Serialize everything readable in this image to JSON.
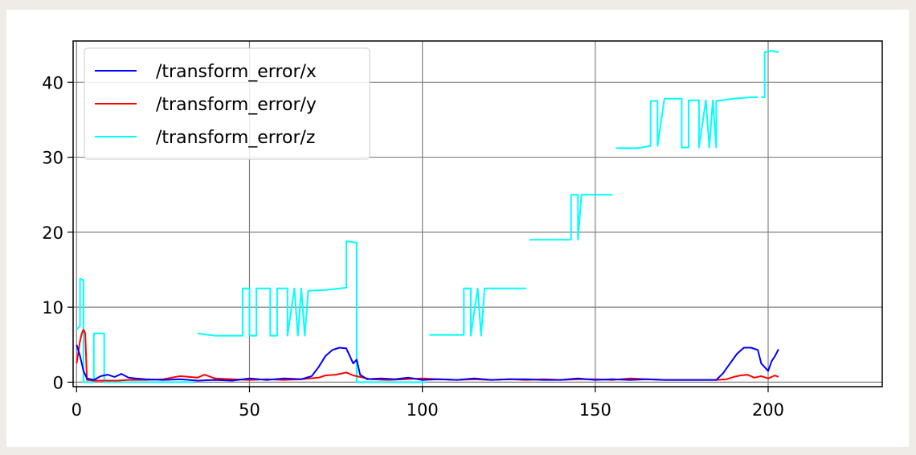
{
  "chart_data": {
    "type": "line",
    "xlim": [
      -1,
      233
    ],
    "ylim": [
      -0.6,
      45.5
    ],
    "x_ticks": [
      0,
      50,
      100,
      150,
      200
    ],
    "y_ticks": [
      0,
      10,
      20,
      30,
      40
    ],
    "grid": true,
    "legend_position": "top-left",
    "series": [
      {
        "name": "/transform_error/x",
        "color": "#0000ff",
        "points": [
          [
            0,
            5.0
          ],
          [
            1,
            3.5
          ],
          [
            2,
            1.5
          ],
          [
            3,
            0.5
          ],
          [
            5,
            0.3
          ],
          [
            7,
            0.8
          ],
          [
            9,
            1.0
          ],
          [
            11,
            0.7
          ],
          [
            13,
            1.1
          ],
          [
            15,
            0.6
          ],
          [
            17,
            0.5
          ],
          [
            20,
            0.4
          ],
          [
            25,
            0.3
          ],
          [
            30,
            0.4
          ],
          [
            35,
            0.2
          ],
          [
            40,
            0.3
          ],
          [
            45,
            0.2
          ],
          [
            50,
            0.5
          ],
          [
            55,
            0.3
          ],
          [
            60,
            0.5
          ],
          [
            65,
            0.4
          ],
          [
            68,
            0.8
          ],
          [
            70,
            2.0
          ],
          [
            72,
            3.5
          ],
          [
            74,
            4.3
          ],
          [
            76,
            4.6
          ],
          [
            78,
            4.5
          ],
          [
            80,
            2.5
          ],
          [
            81,
            3.0
          ],
          [
            82,
            1.0
          ],
          [
            84,
            0.4
          ],
          [
            88,
            0.5
          ],
          [
            92,
            0.4
          ],
          [
            96,
            0.6
          ],
          [
            100,
            0.3
          ],
          [
            105,
            0.4
          ],
          [
            110,
            0.3
          ],
          [
            115,
            0.5
          ],
          [
            120,
            0.3
          ],
          [
            125,
            0.4
          ],
          [
            130,
            0.4
          ],
          [
            135,
            0.3
          ],
          [
            140,
            0.3
          ],
          [
            145,
            0.5
          ],
          [
            150,
            0.3
          ],
          [
            155,
            0.4
          ],
          [
            160,
            0.3
          ],
          [
            165,
            0.4
          ],
          [
            170,
            0.3
          ],
          [
            175,
            0.3
          ],
          [
            180,
            0.3
          ],
          [
            185,
            0.3
          ],
          [
            187,
            1.2
          ],
          [
            189,
            2.5
          ],
          [
            191,
            3.8
          ],
          [
            193,
            4.6
          ],
          [
            195,
            4.6
          ],
          [
            197,
            4.3
          ],
          [
            198,
            2.5
          ],
          [
            200,
            1.5
          ],
          [
            201,
            2.8
          ],
          [
            202,
            3.5
          ],
          [
            203,
            4.4
          ]
        ]
      },
      {
        "name": "/transform_error/y",
        "color": "#ff0000",
        "points": [
          [
            0,
            2.5
          ],
          [
            0.5,
            4.0
          ],
          [
            1,
            5.5
          ],
          [
            1.5,
            6.5
          ],
          [
            2,
            7.0
          ],
          [
            2.5,
            6.5
          ],
          [
            3,
            0.3
          ],
          [
            5,
            0.2
          ],
          [
            8,
            0.2
          ],
          [
            12,
            0.2
          ],
          [
            15,
            0.3
          ],
          [
            20,
            0.3
          ],
          [
            25,
            0.4
          ],
          [
            30,
            0.8
          ],
          [
            35,
            0.6
          ],
          [
            37,
            1.0
          ],
          [
            40,
            0.5
          ],
          [
            45,
            0.4
          ],
          [
            50,
            0.3
          ],
          [
            55,
            0.4
          ],
          [
            60,
            0.3
          ],
          [
            65,
            0.4
          ],
          [
            70,
            0.6
          ],
          [
            72,
            0.9
          ],
          [
            75,
            1.0
          ],
          [
            78,
            1.3
          ],
          [
            80,
            0.9
          ],
          [
            82,
            0.7
          ],
          [
            85,
            0.4
          ],
          [
            90,
            0.3
          ],
          [
            95,
            0.4
          ],
          [
            100,
            0.5
          ],
          [
            105,
            0.4
          ],
          [
            110,
            0.3
          ],
          [
            115,
            0.4
          ],
          [
            120,
            0.3
          ],
          [
            125,
            0.4
          ],
          [
            130,
            0.3
          ],
          [
            135,
            0.4
          ],
          [
            140,
            0.3
          ],
          [
            145,
            0.4
          ],
          [
            150,
            0.4
          ],
          [
            155,
            0.3
          ],
          [
            160,
            0.5
          ],
          [
            165,
            0.4
          ],
          [
            170,
            0.3
          ],
          [
            175,
            0.3
          ],
          [
            180,
            0.3
          ],
          [
            185,
            0.3
          ],
          [
            188,
            0.4
          ],
          [
            190,
            0.7
          ],
          [
            192,
            0.9
          ],
          [
            194,
            1.0
          ],
          [
            196,
            0.6
          ],
          [
            198,
            0.8
          ],
          [
            200,
            0.5
          ],
          [
            202,
            0.9
          ],
          [
            203,
            0.7
          ]
        ]
      },
      {
        "name": "/transform_error/z",
        "color": "#00ffff",
        "segments": [
          [
            [
              0,
              7.0
            ],
            [
              1,
              7.5
            ],
            [
              1,
              13.8
            ],
            [
              2,
              13.6
            ],
            [
              2,
              0.0
            ],
            [
              5,
              0.0
            ],
            [
              5,
              6.5
            ],
            [
              8,
              6.5
            ],
            [
              8,
              0.0
            ],
            [
              34,
              0.0
            ]
          ],
          [
            [
              35,
              6.5
            ],
            [
              40,
              6.2
            ],
            [
              48,
              6.2
            ],
            [
              48,
              12.5
            ],
            [
              50,
              12.5
            ],
            [
              50,
              6.2
            ],
            [
              52,
              6.2
            ],
            [
              52,
              12.5
            ],
            [
              56,
              12.5
            ],
            [
              56,
              6.2
            ],
            [
              58,
              6.2
            ],
            [
              58,
              12.5
            ],
            [
              61,
              12.5
            ],
            [
              61,
              6.2
            ],
            [
              63,
              12.5
            ],
            [
              64,
              6.2
            ],
            [
              65,
              12.5
            ],
            [
              66,
              6.2
            ],
            [
              67,
              12.2
            ],
            [
              72,
              12.3
            ],
            [
              78,
              12.6
            ],
            [
              78,
              18.8
            ],
            [
              81,
              18.6
            ],
            [
              81,
              0.0
            ],
            [
              101,
              0.0
            ]
          ],
          [
            [
              102,
              6.3
            ],
            [
              106,
              6.3
            ],
            [
              112,
              6.3
            ],
            [
              112,
              12.5
            ],
            [
              114,
              12.5
            ],
            [
              114,
              6.2
            ],
            [
              116,
              12.5
            ],
            [
              117,
              6.2
            ],
            [
              118,
              12.5
            ],
            [
              124,
              12.5
            ],
            [
              130,
              12.5
            ]
          ],
          [
            [
              131,
              19.0
            ],
            [
              140,
              19.0
            ],
            [
              143,
              19.0
            ],
            [
              143,
              25.0
            ],
            [
              145,
              25.0
            ],
            [
              145,
              19.0
            ],
            [
              146,
              25.0
            ],
            [
              150,
              25.0
            ],
            [
              155,
              25.0
            ]
          ],
          [
            [
              156,
              31.2
            ],
            [
              162,
              31.2
            ],
            [
              166,
              31.5
            ],
            [
              166,
              37.5
            ],
            [
              168,
              37.5
            ],
            [
              168,
              31.5
            ],
            [
              170,
              37.8
            ],
            [
              175,
              37.8
            ],
            [
              175,
              31.3
            ],
            [
              177,
              31.3
            ],
            [
              177,
              37.6
            ],
            [
              180,
              37.6
            ],
            [
              180,
              31.3
            ],
            [
              182,
              37.6
            ],
            [
              183,
              31.3
            ],
            [
              184,
              37.6
            ],
            [
              185,
              31.3
            ],
            [
              185,
              37.5
            ],
            [
              190,
              37.8
            ],
            [
              195,
              38.0
            ],
            [
              197,
              38.0
            ]
          ],
          [
            [
              198,
              38.0
            ],
            [
              199,
              38.0
            ],
            [
              199,
              44.0
            ],
            [
              201,
              44.2
            ],
            [
              203,
              44.0
            ]
          ]
        ]
      }
    ]
  }
}
